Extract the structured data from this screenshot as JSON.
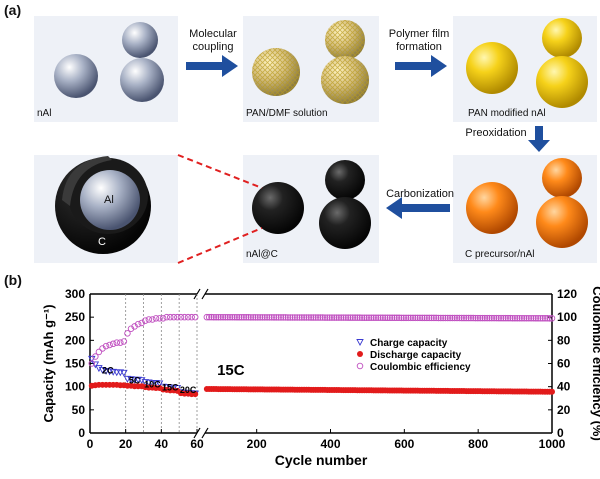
{
  "figure": {
    "panel_a_label": "(a)",
    "panel_b_label": "(b)"
  },
  "schematic": {
    "tiles": [
      {
        "caption": "nAl",
        "sphere_style": "silver"
      },
      {
        "caption": "PAN/DMF solution",
        "sphere_style": "mesh-gold"
      },
      {
        "caption": "PAN modified nAl",
        "sphere_style": "yellow"
      },
      {
        "caption": "C precursor/nAl",
        "sphere_style": "orange"
      },
      {
        "caption": "nAl@C",
        "sphere_style": "black"
      },
      {
        "caption": "",
        "sphere_style": "core-shell"
      }
    ],
    "steps": [
      {
        "label_line1": "Molecular",
        "label_line2": "coupling"
      },
      {
        "label_line1": "Polymer film",
        "label_line2": "formation"
      },
      {
        "label_line1": "Preoxidation",
        "label_line2": ""
      },
      {
        "label_line1": "Carbonization",
        "label_line2": ""
      }
    ],
    "core_shell_labels": {
      "core": "Al",
      "shell": "C"
    },
    "colors": {
      "arrow": "#1f4f9e",
      "zoom_line": "#e02020",
      "tile_bg": "#eef1f7"
    }
  },
  "chart_data": {
    "type": "scatter",
    "xlabel": "Cycle number",
    "ylabel_left": "Capacity (mAh g⁻¹)",
    "ylabel_right": "Coulombic efficiency (%)",
    "x_ticks_left": [
      0,
      20,
      40,
      60
    ],
    "x_ticks_right": [
      200,
      400,
      600,
      800,
      1000
    ],
    "y_ticks_left": [
      0,
      50,
      100,
      150,
      200,
      250,
      300
    ],
    "y_ticks_right": [
      0,
      20,
      40,
      60,
      80,
      100,
      120
    ],
    "ylim_left": [
      0,
      300
    ],
    "ylim_right": [
      0,
      120
    ],
    "axis_break_between": [
      60,
      60
    ],
    "rate_labels": [
      {
        "text": "2C",
        "x": 10,
        "y": 128
      },
      {
        "text": "5C",
        "x": 25,
        "y": 107
      },
      {
        "text": "10C",
        "x": 35,
        "y": 98
      },
      {
        "text": "15C",
        "x": 45,
        "y": 92
      },
      {
        "text": "20C",
        "x": 55,
        "y": 86
      },
      {
        "text": "15C",
        "x": 130,
        "y": 125
      }
    ],
    "rate_segment_bounds": [
      20,
      30,
      40,
      50,
      60
    ],
    "legend_position": "top-right",
    "series": [
      {
        "name": "Charge capacity",
        "marker": "triangle-down-open",
        "color": "#3a3ad0",
        "axis": "left",
        "x": [
          1,
          3,
          5,
          7,
          9,
          11,
          13,
          15,
          17,
          19,
          21,
          23,
          25,
          27,
          29,
          31,
          33,
          35,
          37,
          39,
          41,
          43,
          45,
          47,
          49,
          51,
          53,
          55,
          57,
          59
        ],
        "y": [
          160,
          148,
          140,
          136,
          134,
          133,
          132,
          131,
          131,
          130,
          117,
          116,
          115,
          115,
          114,
          110,
          109,
          108,
          108,
          107,
          100,
          99,
          98,
          98,
          97,
          88,
          87,
          86,
          86,
          85
        ]
      },
      {
        "name": "Discharge capacity",
        "marker": "circle-filled",
        "color": "#e21b1b",
        "axis": "left",
        "segments": [
          {
            "x": [
              1,
              3,
              5,
              7,
              9,
              11,
              13,
              15,
              17,
              19,
              21,
              23,
              25,
              27,
              29,
              31,
              33,
              35,
              37,
              39,
              41,
              43,
              45,
              47,
              49,
              51,
              53,
              55,
              57,
              59
            ],
            "y": [
              102,
              103,
              104,
              104,
              104,
              104,
              104,
              104,
              103,
              103,
              102,
              102,
              101,
              101,
              101,
              99,
              98,
              98,
              97,
              97,
              94,
              93,
              92,
              92,
              91,
              86,
              85,
              85,
              84,
              84
            ]
          },
          {
            "x_range": [
              65,
              1000
            ],
            "y_start": 95,
            "y_end": 89
          }
        ]
      },
      {
        "name": "Coulombic efficiency",
        "marker": "circle-open",
        "color": "#c050c0",
        "axis": "right",
        "segments": [
          {
            "x": [
              1,
              3,
              5,
              7,
              9,
              11,
              13,
              15,
              17,
              19,
              21,
              23,
              25,
              27,
              29,
              31,
              33,
              35,
              37,
              39,
              41,
              43,
              45,
              47,
              49,
              51,
              53,
              55,
              57,
              59
            ],
            "y": [
              60,
              66,
              70,
              73,
              75,
              76,
              77,
              78,
              78,
              79,
              86,
              90,
              92,
              94,
              95,
              97,
              98,
              98,
              99,
              99,
              99,
              100,
              100,
              100,
              100,
              100,
              100,
              100,
              100,
              100
            ]
          },
          {
            "x_range": [
              65,
              1000
            ],
            "y_start": 100,
            "y_end": 99
          }
        ]
      }
    ]
  }
}
